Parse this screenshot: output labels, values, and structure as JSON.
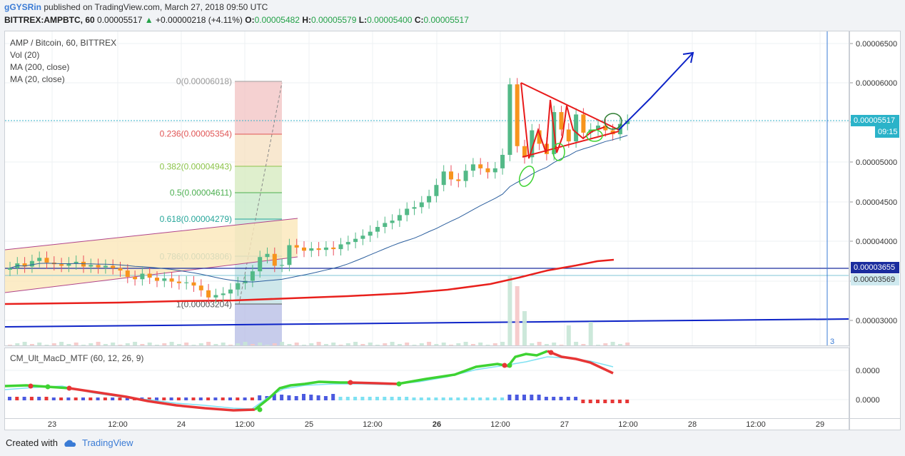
{
  "header": {
    "user": "gGYSRin",
    "published": "published on TradingView.com, March 27, 2018 09:50 UTC",
    "symbol_line": "BITTREX:AMPBTC, 60",
    "last": "0.00005517",
    "change": "+0.00000218 (+4.11%)",
    "o_label": "O:",
    "o": "0.00005482",
    "h_label": "H:",
    "h": "0.00005579",
    "l_label": "L:",
    "l": "0.00005400",
    "c_label": "C:",
    "c": "0.00005517"
  },
  "legend": {
    "title": "AMP / Bitcoin, 60, BITTREX",
    "vol": "Vol (20)",
    "ma200": "MA (200, close)",
    "ma20": "MA (20, close)"
  },
  "macd_legend": "CM_Ult_MacD_MTF (60, 12, 26, 9)",
  "price_labels": {
    "last": "0.00005517",
    "countdown": "09:15",
    "line1": "0.00003655",
    "line2": "0.00003569"
  },
  "marker_3": "3",
  "footer": {
    "created": "Created with",
    "brand": "TradingView"
  },
  "colors": {
    "up": "#53b987",
    "down": "#eb4d5c",
    "ma200": "#e8201c",
    "ma20": "#2c5f9e",
    "trend": "#0d23c7",
    "macd_green": "#3ed332",
    "macd_red": "#e73636",
    "signal": "#7ee1f2"
  },
  "chart_data": {
    "type": "candlestick",
    "title": "AMP / Bitcoin, 60, BITTREX",
    "y_axis": {
      "ticks": [
        "0.00006500",
        "0.00006000",
        "0.00005500",
        "0.00005000",
        "0.00004500",
        "0.00004000",
        "0.00003500",
        "0.00003000"
      ],
      "values": [
        6.5e-05,
        6e-05,
        5.5e-05,
        5e-05,
        4.5e-05,
        4e-05,
        3.5e-05,
        3e-05
      ]
    },
    "macd_axis": {
      "ticks": [
        "0.0000",
        "0.0000"
      ]
    },
    "x_axis": {
      "ticks": [
        "23",
        "12:00",
        "24",
        "12:00",
        "25",
        "12:00",
        "26",
        "12:00",
        "27",
        "12:00",
        "28",
        "12:00",
        "29"
      ]
    },
    "fibonacci": [
      {
        "label": "0(0.00006018)",
        "value": 6.018e-05
      },
      {
        "label": "0.236(0.00005354)",
        "value": 5.354e-05
      },
      {
        "label": "0.382(0.00004943)",
        "value": 4.943e-05
      },
      {
        "label": "0.5(0.00004611)",
        "value": 4.611e-05
      },
      {
        "label": "0.618(0.00004279)",
        "value": 4.279e-05
      },
      {
        "label": "0.786(0.00003806)",
        "value": 3.806e-05
      },
      {
        "label": "1(0.00003204)",
        "value": 3.204e-05
      }
    ],
    "closes": [
      3.66e-05,
      3.72e-05,
      3.68e-05,
      3.75e-05,
      3.79e-05,
      3.73e-05,
      3.71e-05,
      3.69e-05,
      3.72e-05,
      3.74e-05,
      3.68e-05,
      3.7e-05,
      3.67e-05,
      3.69e-05,
      3.66e-05,
      3.63e-05,
      3.55e-05,
      3.52e-05,
      3.59e-05,
      3.54e-05,
      3.5e-05,
      3.53e-05,
      3.49e-05,
      3.47e-05,
      3.48e-05,
      3.44e-05,
      3.38e-05,
      3.29e-05,
      3.32e-05,
      3.34e-05,
      3.39e-05,
      3.47e-05,
      3.5e-05,
      3.62e-05,
      3.8e-05,
      3.84e-05,
      3.69e-05,
      3.7e-05,
      3.95e-05,
      3.92e-05,
      3.88e-05,
      3.91e-05,
      3.89e-05,
      3.92e-05,
      3.9e-05,
      3.96e-05,
      3.99e-05,
      4.03e-05,
      4.07e-05,
      4.12e-05,
      4.18e-05,
      4.23e-05,
      4.26e-05,
      4.33e-05,
      4.41e-05,
      4.43e-05,
      4.49e-05,
      4.57e-05,
      4.71e-05,
      4.88e-05,
      4.78e-05,
      4.76e-05,
      4.89e-05,
      4.97e-05,
      4.92e-05,
      4.87e-05,
      4.92e-05,
      5.09e-05,
      5.98e-05,
      5.2e-05,
      5.06e-05,
      5.4e-05,
      5.23e-05,
      5.1e-05,
      5.63e-05,
      5.41e-05,
      5.26e-05,
      5.6e-05,
      5.37e-05,
      5.41e-05,
      5.46e-05,
      5.4e-05,
      5.35e-05,
      5.48e-05,
      5.52e-05
    ]
  }
}
